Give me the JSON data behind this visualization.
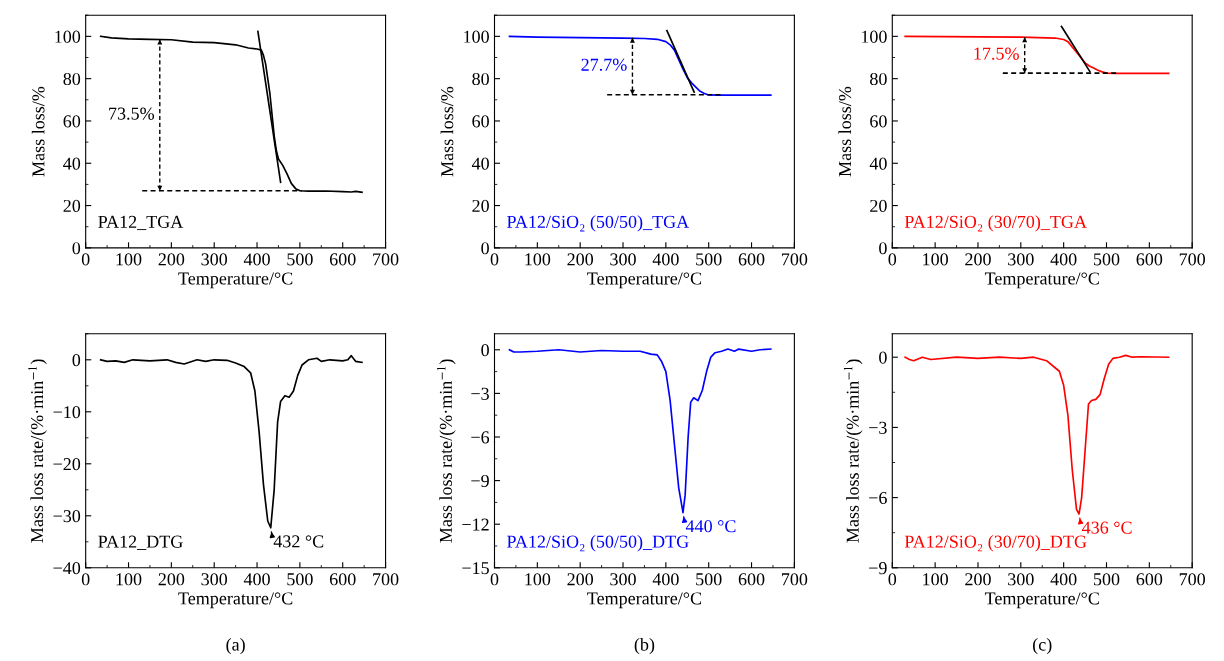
{
  "chart_data": [
    {
      "type": "line",
      "xlabel": "Temperature/°C",
      "ylabel": "Mass loss/%",
      "xlim": [
        0,
        700
      ],
      "ylim": [
        0,
        110
      ],
      "xticks": [
        0,
        100,
        200,
        300,
        400,
        500,
        600,
        700
      ],
      "yticks": [
        0,
        20,
        40,
        60,
        80,
        100
      ],
      "grid": false,
      "legend": false,
      "marker": "none",
      "annotations": [
        "PA12_TGA",
        "73.5%"
      ],
      "series": [
        {
          "color": "#000000",
          "line_style": "solid",
          "x": [
            35,
            60,
            100,
            150,
            200,
            250,
            300,
            350,
            380,
            400,
            410,
            415,
            420,
            425,
            430,
            435,
            440,
            445,
            450,
            460,
            470,
            480,
            490,
            500,
            520,
            560,
            600,
            620,
            630,
            645
          ],
          "values": [
            100,
            99.3,
            98.8,
            98.6,
            98.4,
            97.3,
            97.0,
            96.0,
            94.5,
            94,
            93.5,
            91,
            87,
            80,
            73,
            63,
            53,
            46,
            42,
            39,
            35,
            30.5,
            28,
            27,
            26.8,
            26.9,
            26.6,
            26.4,
            26.7,
            26.3
          ]
        },
        {
          "color": "#000000",
          "line_style": "solid",
          "x": [
            402,
            455
          ],
          "values": [
            102.3,
            31
          ]
        },
        {
          "color": "#000000",
          "line_style": "dashed",
          "x": [
            132,
            505
          ],
          "values": [
            27,
            27
          ]
        },
        {
          "color": "#000000",
          "line_style": "dashed",
          "x": [
            173,
            173
          ],
          "values": [
            98.5,
            27
          ]
        }
      ]
    },
    {
      "type": "line",
      "xlabel": "Temperature/°C",
      "ylabel": "Mass loss/%",
      "xlim": [
        0,
        700
      ],
      "ylim": [
        0,
        110
      ],
      "xticks": [
        0,
        100,
        200,
        300,
        400,
        500,
        600,
        700
      ],
      "yticks": [
        0,
        20,
        40,
        60,
        80,
        100
      ],
      "grid": false,
      "legend": false,
      "marker": "none",
      "annotations": [
        "PA12/SiO₂ (50/50)_TGA",
        "27.7%"
      ],
      "series": [
        {
          "color": "#0000ff",
          "line_style": "solid",
          "x": [
            35,
            100,
            200,
            300,
            350,
            380,
            400,
            410,
            420,
            430,
            440,
            450,
            460,
            470,
            480,
            490,
            500,
            520,
            645
          ],
          "values": [
            100,
            99.6,
            99.4,
            99.2,
            99.0,
            98.6,
            97.5,
            96,
            93.5,
            89,
            84.5,
            80.5,
            78,
            76,
            74,
            73,
            72.3,
            72.2,
            72.2
          ]
        },
        {
          "color": "#000000",
          "line_style": "solid",
          "x": [
            402.5,
            466
          ],
          "values": [
            102.7,
            73.6
          ]
        },
        {
          "color": "#000000",
          "line_style": "dashed",
          "x": [
            263,
            531
          ],
          "values": [
            72.4,
            72.4
          ]
        },
        {
          "color": "#000000",
          "line_style": "dashed",
          "x": [
            322,
            322
          ],
          "values": [
            99.3,
            72.4
          ]
        }
      ]
    },
    {
      "type": "line",
      "xlabel": "Temperature/°C",
      "ylabel": "Mass loss/%",
      "xlim": [
        0,
        700
      ],
      "ylim": [
        0,
        110
      ],
      "xticks": [
        0,
        100,
        200,
        300,
        400,
        500,
        600,
        700
      ],
      "yticks": [
        0,
        20,
        40,
        60,
        80,
        100
      ],
      "grid": false,
      "legend": false,
      "marker": "none",
      "annotations": [
        "PA12/SiO₂ (30/70)_TGA",
        "17.5%"
      ],
      "series": [
        {
          "color": "#ff0000",
          "line_style": "solid",
          "x": [
            30,
            300,
            380,
            400,
            410,
            420,
            430,
            440,
            450,
            460,
            470,
            480,
            490,
            500,
            520,
            645
          ],
          "values": [
            100,
            99.6,
            99.2,
            98.5,
            97.5,
            95,
            92.5,
            90,
            87.5,
            86,
            85,
            84,
            83.2,
            82.6,
            82.5,
            82.5
          ]
        },
        {
          "color": "#000000",
          "line_style": "solid",
          "x": [
            395,
            461
          ],
          "values": [
            104.7,
            83.4
          ]
        },
        {
          "color": "#000000",
          "line_style": "dashed",
          "x": [
            258,
            526
          ],
          "values": [
            82.6,
            82.6
          ]
        },
        {
          "color": "#000000",
          "line_style": "dashed",
          "x": [
            309,
            309
          ],
          "values": [
            99.6,
            82.6
          ]
        }
      ]
    },
    {
      "type": "line",
      "xlabel": "Temperature/°C",
      "ylabel": "Mass loss rate/(%·min$^{−1}$)",
      "xlim": [
        0,
        700
      ],
      "ylim": [
        -40,
        5
      ],
      "xticks": [
        0,
        100,
        200,
        300,
        400,
        500,
        600,
        700
      ],
      "yticks": [
        -40,
        -30,
        -20,
        -10,
        0
      ],
      "grid": false,
      "legend": false,
      "marker": "none",
      "annotations": [
        "PA12_DTG",
        {
          "text": "432 °C",
          "x": 432,
          "y": -32.3
        },
        "(a)"
      ],
      "series": [
        {
          "color": "#000000",
          "line_style": "solid",
          "x": [
            35,
            50,
            70,
            90,
            110,
            150,
            190,
            210,
            230,
            260,
            280,
            300,
            330,
            350,
            370,
            385,
            395,
            405,
            415,
            425,
            432,
            440,
            448,
            455,
            465,
            475,
            485,
            495,
            505,
            520,
            540,
            550,
            570,
            600,
            612,
            620,
            630,
            645
          ],
          "values": [
            0,
            -0.3,
            -0.2,
            -0.5,
            0,
            -0.2,
            0,
            -0.5,
            -0.8,
            0,
            -0.3,
            0,
            -0.1,
            -0.6,
            -1.3,
            -2.5,
            -6,
            -14,
            -24,
            -31,
            -32.3,
            -25,
            -12,
            -8,
            -6.9,
            -7.2,
            -6,
            -3,
            -1,
            0,
            0.3,
            -0.3,
            0,
            -0.2,
            0,
            0.8,
            -0.3,
            -0.5
          ]
        }
      ]
    },
    {
      "type": "line",
      "xlabel": "Temperature/°C",
      "ylabel": "Mass loss rate/(%·min$^{−1}$)",
      "xlim": [
        0,
        700
      ],
      "ylim": [
        -15,
        1.1
      ],
      "xticks": [
        0,
        100,
        200,
        300,
        400,
        500,
        600,
        700
      ],
      "yticks": [
        -15,
        -12,
        -9,
        -6,
        -3,
        0
      ],
      "grid": false,
      "legend": false,
      "marker": "none",
      "annotations": [
        "PA12/SiO₂ (50/50)_DTG",
        {
          "text": "440 °C",
          "x": 440,
          "y": -11.2
        },
        "(b)"
      ],
      "series": [
        {
          "color": "#0000ff",
          "line_style": "solid",
          "x": [
            35,
            45,
            60,
            100,
            150,
            200,
            250,
            300,
            340,
            365,
            380,
            390,
            400,
            410,
            420,
            430,
            440,
            445,
            452,
            458,
            465,
            475,
            485,
            495,
            505,
            515,
            530,
            545,
            560,
            570,
            600,
            620,
            645
          ],
          "values": [
            0,
            -0.15,
            -0.15,
            -0.1,
            0,
            -0.15,
            -0.05,
            -0.1,
            -0.1,
            -0.3,
            -0.35,
            -0.8,
            -1.5,
            -3.5,
            -6.5,
            -9.5,
            -11.2,
            -10,
            -6,
            -3.6,
            -3.3,
            -3.5,
            -2.8,
            -1.5,
            -0.5,
            -0.2,
            -0.1,
            0.05,
            -0.1,
            0.05,
            -0.1,
            0,
            0.05
          ]
        }
      ]
    },
    {
      "type": "line",
      "xlabel": "Temperature/°C",
      "ylabel": "Mass loss rate/(%·min$^{−1}$)",
      "xlim": [
        0,
        700
      ],
      "ylim": [
        -9,
        1
      ],
      "xticks": [
        0,
        100,
        200,
        300,
        400,
        500,
        600,
        700
      ],
      "yticks": [
        -9,
        -6,
        -3,
        0
      ],
      "grid": false,
      "legend": false,
      "marker": "none",
      "annotations": [
        "PA12/SiO₂ (30/70)_DTG",
        {
          "text": "436 °C",
          "x": 436,
          "y": -6.7
        },
        "(c)"
      ],
      "series": [
        {
          "color": "#ff0000",
          "line_style": "solid",
          "x": [
            30,
            40,
            50,
            70,
            90,
            150,
            200,
            250,
            300,
            330,
            360,
            380,
            390,
            400,
            410,
            420,
            430,
            436,
            442,
            450,
            458,
            465,
            475,
            485,
            495,
            505,
            515,
            530,
            545,
            560,
            580,
            645
          ],
          "values": [
            0,
            -0.1,
            -0.15,
            0,
            -0.1,
            0,
            -0.05,
            0,
            -0.05,
            0,
            -0.15,
            -0.45,
            -0.6,
            -1.2,
            -2.5,
            -4.8,
            -6.5,
            -6.7,
            -6,
            -4,
            -2,
            -1.85,
            -1.8,
            -1.6,
            -0.9,
            -0.3,
            -0.05,
            0,
            0.08,
            0,
            0.02,
            0
          ]
        }
      ]
    }
  ]
}
